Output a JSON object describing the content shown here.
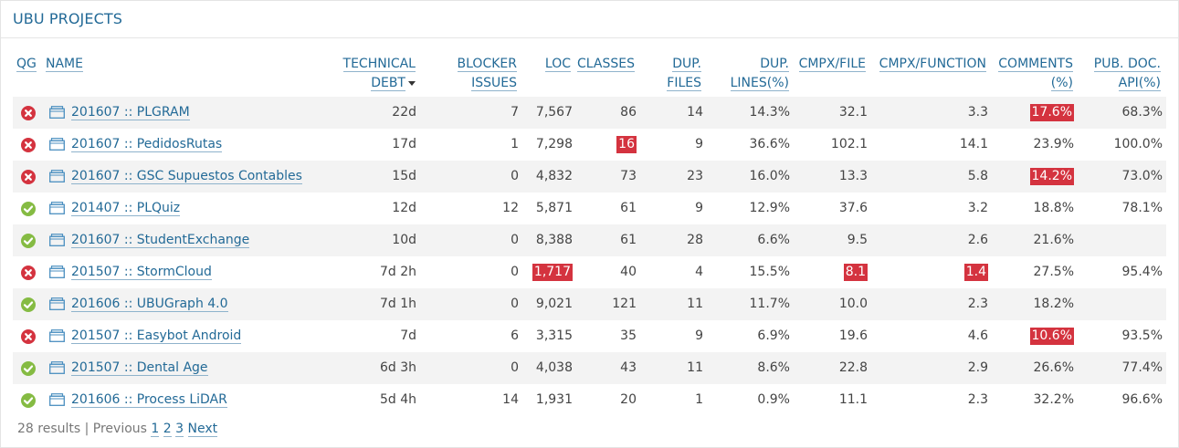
{
  "title": "UBU PROJECTS",
  "headers": {
    "qg": "QG",
    "name": "NAME",
    "technical_debt": [
      "TECHNICAL",
      "DEBT"
    ],
    "blocker_issues": [
      "BLOCKER",
      "ISSUES"
    ],
    "loc": "LOC",
    "classes": "CLASSES",
    "dup_files": [
      "DUP.",
      "FILES"
    ],
    "dup_lines": [
      "DUP.",
      "LINES(%)"
    ],
    "cmpx_file": "CMPX/FILE",
    "cmpx_function": "CMPX/FUNCTION",
    "comments": [
      "COMMENTS",
      "(%)"
    ],
    "pub_doc_api": [
      "PUB. DOC.",
      "API(%)"
    ]
  },
  "icons": {
    "qg_error": "error-icon",
    "qg_ok": "check-icon",
    "project": "project-icon",
    "sort": "sort-desc-icon"
  },
  "colors": {
    "link": "#236a97",
    "error": "#d4333f",
    "ok": "#85bb43",
    "alt_row": "#f3f3f3"
  },
  "rows": [
    {
      "qg": "error",
      "name": "201607 :: PLGRAM",
      "debt": "22d",
      "blocker": "7",
      "loc": "7,567",
      "classes": "86",
      "dup_files": "14",
      "dup_lines": "14.3%",
      "cmpx_file": "32.1",
      "cmpx_function": "3.3",
      "comments": "17.6%",
      "pub_doc": "68.3%",
      "flags": [
        "comments"
      ]
    },
    {
      "qg": "error",
      "name": "201607 :: PedidosRutas",
      "debt": "17d",
      "blocker": "1",
      "loc": "7,298",
      "classes": "16",
      "dup_files": "9",
      "dup_lines": "36.6%",
      "cmpx_file": "102.1",
      "cmpx_function": "14.1",
      "comments": "23.9%",
      "pub_doc": "100.0%",
      "flags": [
        "classes"
      ]
    },
    {
      "qg": "error",
      "name": "201607 :: GSC Supuestos Contables",
      "debt": "15d",
      "blocker": "0",
      "loc": "4,832",
      "classes": "73",
      "dup_files": "23",
      "dup_lines": "16.0%",
      "cmpx_file": "13.3",
      "cmpx_function": "5.8",
      "comments": "14.2%",
      "pub_doc": "73.0%",
      "flags": [
        "comments"
      ]
    },
    {
      "qg": "ok",
      "name": "201407 :: PLQuiz",
      "debt": "12d",
      "blocker": "12",
      "loc": "5,871",
      "classes": "61",
      "dup_files": "9",
      "dup_lines": "12.9%",
      "cmpx_file": "37.6",
      "cmpx_function": "3.2",
      "comments": "18.8%",
      "pub_doc": "78.1%",
      "flags": []
    },
    {
      "qg": "ok",
      "name": "201607 :: StudentExchange",
      "debt": "10d",
      "blocker": "0",
      "loc": "8,388",
      "classes": "61",
      "dup_files": "28",
      "dup_lines": "6.6%",
      "cmpx_file": "9.5",
      "cmpx_function": "2.6",
      "comments": "21.6%",
      "pub_doc": "",
      "flags": []
    },
    {
      "qg": "error",
      "name": "201507 :: StormCloud",
      "debt": "7d 2h",
      "blocker": "0",
      "loc": "1,717",
      "classes": "40",
      "dup_files": "4",
      "dup_lines": "15.5%",
      "cmpx_file": "8.1",
      "cmpx_function": "1.4",
      "comments": "27.5%",
      "pub_doc": "95.4%",
      "flags": [
        "loc",
        "cmpx_file",
        "cmpx_function"
      ]
    },
    {
      "qg": "ok",
      "name": "201606 :: UBUGraph 4.0",
      "debt": "7d 1h",
      "blocker": "0",
      "loc": "9,021",
      "classes": "121",
      "dup_files": "11",
      "dup_lines": "11.7%",
      "cmpx_file": "10.0",
      "cmpx_function": "2.3",
      "comments": "18.2%",
      "pub_doc": "",
      "flags": []
    },
    {
      "qg": "error",
      "name": "201507 :: Easybot Android",
      "debt": "7d",
      "blocker": "6",
      "loc": "3,315",
      "classes": "35",
      "dup_files": "9",
      "dup_lines": "6.9%",
      "cmpx_file": "19.6",
      "cmpx_function": "4.6",
      "comments": "10.6%",
      "pub_doc": "93.5%",
      "flags": [
        "comments"
      ]
    },
    {
      "qg": "ok",
      "name": "201507 :: Dental Age",
      "debt": "6d 3h",
      "blocker": "0",
      "loc": "4,038",
      "classes": "43",
      "dup_files": "11",
      "dup_lines": "8.6%",
      "cmpx_file": "22.8",
      "cmpx_function": "2.9",
      "comments": "26.6%",
      "pub_doc": "77.4%",
      "flags": []
    },
    {
      "qg": "ok",
      "name": "201606 :: Process LiDAR",
      "debt": "5d 4h",
      "blocker": "14",
      "loc": "1,931",
      "classes": "20",
      "dup_files": "1",
      "dup_lines": "0.9%",
      "cmpx_file": "11.1",
      "cmpx_function": "2.3",
      "comments": "32.2%",
      "pub_doc": "96.6%",
      "flags": []
    }
  ],
  "footer": {
    "results": "28 results | Previous",
    "pages": [
      "1",
      "2",
      "3"
    ],
    "next": "Next"
  }
}
